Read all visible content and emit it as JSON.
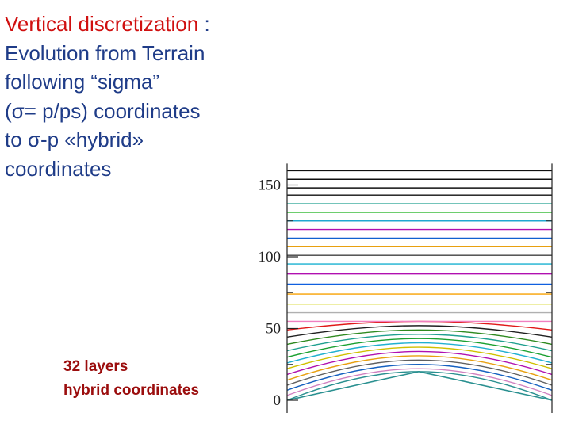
{
  "title": {
    "line1_main": "Vertical discretization",
    "line1_colon": " :",
    "line2": "Evolution from Terrain",
    "line3": "following “sigma”",
    "line4": "(σ= p/ps) coordinates",
    "line5": "to σ-p «hybrid»",
    "line6": "coordinates"
  },
  "caption": {
    "line1": "32 layers",
    "line2": "hybrid coordinates"
  },
  "chart_data": {
    "type": "line",
    "title": "",
    "xlabel": "",
    "ylabel": "",
    "ylim": [
      0,
      163
    ],
    "y_ticks": [
      "0",
      "50",
      "100",
      "150"
    ],
    "grid": false,
    "series_description": "Model level heights across a triangular (mountain) terrain profile; each level gives height at the left edge, at the peak, and at the right edge.",
    "levels": [
      {
        "left": 0,
        "peak": 20,
        "right": 0,
        "color": "#2a9090"
      },
      {
        "left": 3.4,
        "peak": 22,
        "right": 3.4,
        "color": "#d080c0"
      },
      {
        "left": 7,
        "peak": 25,
        "right": 7,
        "color": "#1560c0"
      },
      {
        "left": 10.5,
        "peak": 28,
        "right": 10.5,
        "color": "#606060"
      },
      {
        "left": 14,
        "peak": 31,
        "right": 14,
        "color": "#e8a010"
      },
      {
        "left": 18,
        "peak": 34,
        "right": 18,
        "color": "#b010b0"
      },
      {
        "left": 22,
        "peak": 37,
        "right": 22,
        "color": "#d0c000"
      },
      {
        "left": 26,
        "peak": 40,
        "right": 26,
        "color": "#20b0d0"
      },
      {
        "left": 30,
        "peak": 43,
        "right": 30,
        "color": "#1aa030"
      },
      {
        "left": 34.5,
        "peak": 46,
        "right": 34.5,
        "color": "#20a090"
      },
      {
        "left": 39,
        "peak": 49,
        "right": 39,
        "color": "#2f8a20"
      },
      {
        "left": 44,
        "peak": 52,
        "right": 44,
        "color": "#202020"
      },
      {
        "left": 49,
        "peak": 55,
        "right": 49,
        "color": "#e01818"
      },
      {
        "left": 55,
        "peak": 55,
        "right": 55,
        "color": "#f080c0"
      },
      {
        "left": 61,
        "peak": 61,
        "right": 61,
        "color": "#b0b0b0"
      },
      {
        "left": 67,
        "peak": 67,
        "right": 67,
        "color": "#d0d010"
      },
      {
        "left": 74,
        "peak": 74,
        "right": 74,
        "color": "#f8a000"
      },
      {
        "left": 81,
        "peak": 81,
        "right": 81,
        "color": "#1060e0"
      },
      {
        "left": 88,
        "peak": 88,
        "right": 88,
        "color": "#b010b0"
      },
      {
        "left": 95,
        "peak": 95,
        "right": 95,
        "color": "#18b0d0"
      },
      {
        "left": 101,
        "peak": 101,
        "right": 101,
        "color": "#404040"
      },
      {
        "left": 107,
        "peak": 107,
        "right": 107,
        "color": "#e8a010"
      },
      {
        "left": 113,
        "peak": 113,
        "right": 113,
        "color": "#1060d0"
      },
      {
        "left": 119,
        "peak": 119,
        "right": 119,
        "color": "#b010b0"
      },
      {
        "left": 125,
        "peak": 125,
        "right": 125,
        "color": "#20a8d0"
      },
      {
        "left": 131,
        "peak": 131,
        "right": 131,
        "color": "#18b018"
      },
      {
        "left": 137,
        "peak": 137,
        "right": 137,
        "color": "#20a090"
      },
      {
        "left": 143,
        "peak": 143,
        "right": 143,
        "color": "#101010"
      },
      {
        "left": 148,
        "peak": 148,
        "right": 148,
        "color": "#101010"
      },
      {
        "left": 154,
        "peak": 154,
        "right": 154,
        "color": "#101010"
      },
      {
        "left": 160,
        "peak": 160,
        "right": 160,
        "color": "#101010"
      }
    ]
  }
}
